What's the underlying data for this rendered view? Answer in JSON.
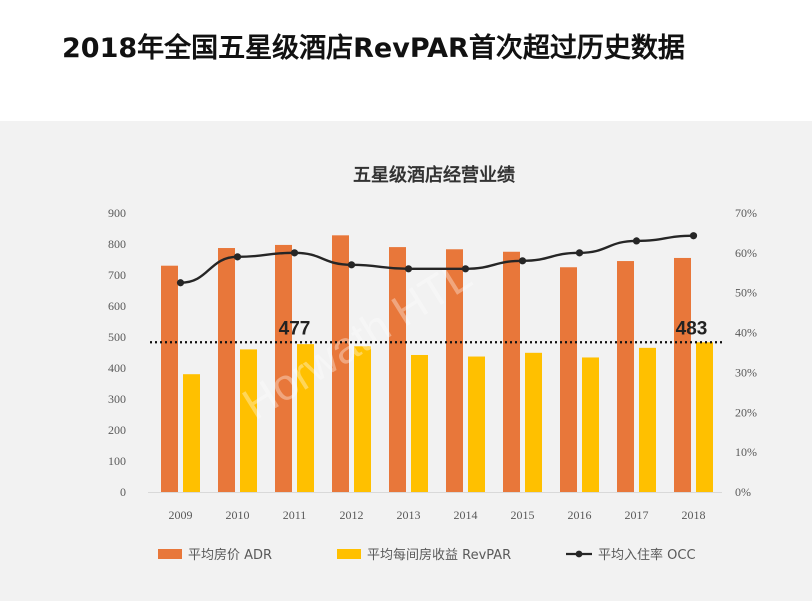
{
  "page": {
    "title": "2018年全国五星级酒店RevPAR首次超过历史数据"
  },
  "watermark": "Horwath HTL",
  "chart_data": {
    "type": "bar",
    "title": "五星级酒店经营业绩",
    "categories": [
      "2009",
      "2010",
      "2011",
      "2012",
      "2013",
      "2014",
      "2015",
      "2016",
      "2017",
      "2018"
    ],
    "y_left": {
      "ylim": [
        0,
        900
      ],
      "ticks": [
        "0",
        "100",
        "200",
        "300",
        "400",
        "500",
        "600",
        "700",
        "800",
        "900"
      ]
    },
    "y_right": {
      "ylim": [
        0,
        70
      ],
      "unit": "%",
      "ticks": [
        "0%",
        "10%",
        "20%",
        "30%",
        "40%",
        "50%",
        "60%",
        "70%"
      ]
    },
    "series": [
      {
        "name": "平均房价 ADR",
        "kind": "bar",
        "axis": "left",
        "color": "#E8773A",
        "values": [
          730,
          787,
          797,
          828,
          790,
          783,
          775,
          725,
          745,
          755
        ]
      },
      {
        "name": "平均每间房收益 RevPAR",
        "kind": "bar",
        "axis": "left",
        "color": "#FFC000",
        "values": [
          380,
          460,
          477,
          470,
          442,
          437,
          449,
          434,
          465,
          483
        ]
      },
      {
        "name": "平均入住率 OCC",
        "kind": "line",
        "axis": "right",
        "color": "#262626",
        "values": [
          52.5,
          59,
          60,
          57,
          56,
          56,
          58,
          60,
          63,
          64.3
        ]
      }
    ],
    "reference_line": {
      "value": 483,
      "style": "dotted",
      "color": "#111111"
    },
    "annotations": [
      {
        "category": "2011",
        "text": "477"
      },
      {
        "category": "2018",
        "text": "483"
      }
    ],
    "legend": "bottom",
    "grid": false
  }
}
